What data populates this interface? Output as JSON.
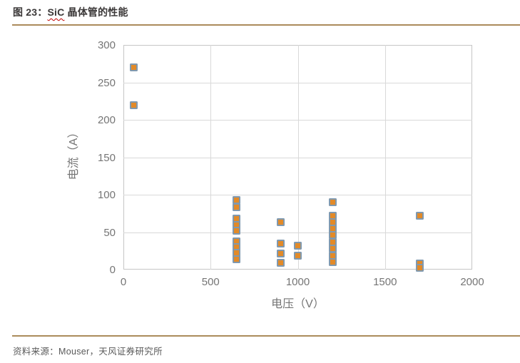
{
  "title": {
    "prefix": "图 23：",
    "highlight": "SiC",
    "suffix": " 晶体管的性能"
  },
  "source_note": "资料来源：Mouser，天风证券研究所",
  "colors": {
    "rule": "#ab8b5b",
    "title_text": "#3b3838",
    "axis_text": "#757575",
    "grid": "#d9d9d9",
    "plot_border": "#c6c6c6",
    "marker_fill": "#e28a28",
    "marker_border": "#8099af",
    "squiggle": "#c00000",
    "source_text": "#595959"
  },
  "chart_data": {
    "type": "scatter",
    "title": "SiC 晶体管的性能",
    "xlabel": "电压（V）",
    "ylabel": "电流（A）",
    "xlim": [
      0,
      2000
    ],
    "ylim": [
      0,
      300
    ],
    "x_ticks": [
      0,
      500,
      1000,
      1500,
      2000
    ],
    "y_ticks": [
      0,
      50,
      100,
      150,
      200,
      250,
      300
    ],
    "grid": true,
    "legend": false,
    "marker_shape": "square",
    "series": [
      {
        "name": "SiC 晶体管",
        "points": [
          [
            60,
            270
          ],
          [
            60,
            220
          ],
          [
            650,
            93
          ],
          [
            650,
            83
          ],
          [
            650,
            68
          ],
          [
            650,
            60
          ],
          [
            650,
            52
          ],
          [
            650,
            38
          ],
          [
            650,
            30
          ],
          [
            650,
            22
          ],
          [
            650,
            14
          ],
          [
            900,
            63
          ],
          [
            900,
            35
          ],
          [
            900,
            21
          ],
          [
            900,
            9
          ],
          [
            1000,
            32
          ],
          [
            1000,
            19
          ],
          [
            1200,
            90
          ],
          [
            1200,
            72
          ],
          [
            1200,
            63
          ],
          [
            1200,
            55
          ],
          [
            1200,
            46
          ],
          [
            1200,
            37
          ],
          [
            1200,
            28
          ],
          [
            1200,
            19
          ],
          [
            1200,
            10
          ],
          [
            1700,
            72
          ],
          [
            1700,
            8
          ],
          [
            1700,
            2
          ]
        ]
      }
    ]
  }
}
